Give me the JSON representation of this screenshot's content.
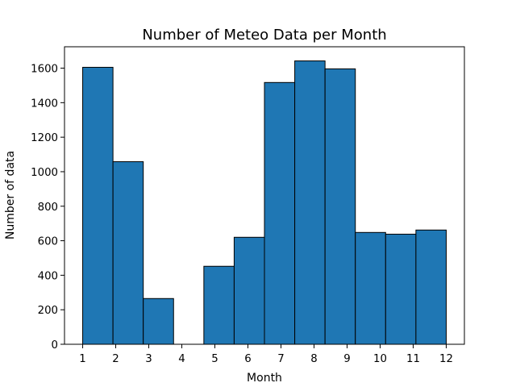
{
  "chart_data": {
    "type": "bar",
    "title": "Number of Meteo Data per Month",
    "xlabel": "Month",
    "ylabel": "Number of data",
    "bins": [
      {
        "start": 1.0,
        "end": 1.9167,
        "value": 1605
      },
      {
        "start": 1.9167,
        "end": 2.8333,
        "value": 1058
      },
      {
        "start": 2.8333,
        "end": 3.75,
        "value": 265
      },
      {
        "start": 3.75,
        "end": 4.6667,
        "value": 0
      },
      {
        "start": 4.6667,
        "end": 5.5833,
        "value": 452
      },
      {
        "start": 5.5833,
        "end": 6.5,
        "value": 620
      },
      {
        "start": 6.5,
        "end": 7.4167,
        "value": 1517
      },
      {
        "start": 7.4167,
        "end": 8.3333,
        "value": 1642
      },
      {
        "start": 8.3333,
        "end": 9.25,
        "value": 1596
      },
      {
        "start": 9.25,
        "end": 10.1667,
        "value": 648
      },
      {
        "start": 10.1667,
        "end": 11.0833,
        "value": 638
      },
      {
        "start": 11.0833,
        "end": 12.0,
        "value": 662
      }
    ],
    "xlim": [
      0.45,
      12.55
    ],
    "ylim": [
      0,
      1724
    ],
    "xticks": [
      1,
      2,
      3,
      4,
      5,
      6,
      7,
      8,
      9,
      10,
      11,
      12
    ],
    "yticks": [
      0,
      200,
      400,
      600,
      800,
      1000,
      1200,
      1400,
      1600
    ],
    "grid": false,
    "bar_color": "#1f77b4",
    "edge_color": "#000000"
  }
}
